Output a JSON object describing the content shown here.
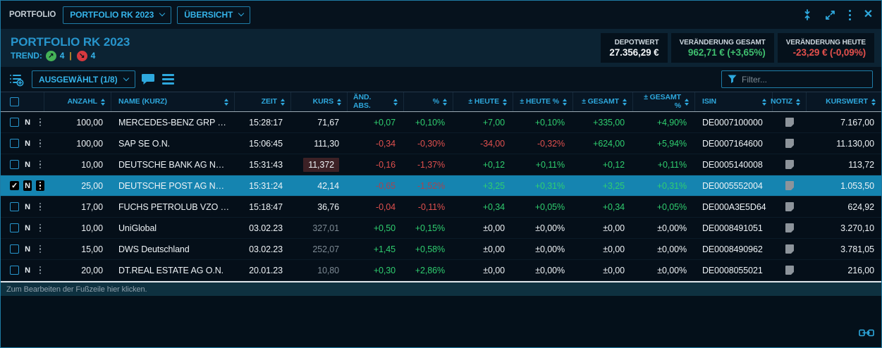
{
  "top_bar": {
    "app_label": "PORTFOLIO",
    "portfolio_select": "PORTFOLIO RK 2023",
    "view_select": "ÜBERSICHT"
  },
  "header": {
    "title": "PORTFOLIO RK 2023",
    "trend": {
      "label": "TREND:",
      "up_count": "4",
      "down_count": "4"
    },
    "stats": [
      {
        "label": "DEPOTWERT",
        "value": "27.356,29 €",
        "tone": "white"
      },
      {
        "label": "VERÄNDERUNG GESAMT",
        "value": "962,71 € (+3,65%)",
        "tone": "green"
      },
      {
        "label": "VERÄNDERUNG HEUTE",
        "value": "-23,29 € (-0,09%)",
        "tone": "red"
      }
    ]
  },
  "toolbar": {
    "selection_dropdown": "AUSGEWÄHLT (1/8)",
    "filter_placeholder": "Filter..."
  },
  "table": {
    "columns": [
      "ANZAHL",
      "NAME (KURZ)",
      "ZEIT",
      "KURS",
      "ÄND. ABS.",
      "%",
      "± HEUTE",
      "± HEUTE %",
      "± GESAMT",
      "± GESAMT %",
      "ISIN",
      "NOTIZ",
      "KURSWERT"
    ],
    "rows": [
      {
        "checked": false,
        "selected": false,
        "badge": "N",
        "anzahl": "100,00",
        "name": "MERCEDES-BENZ GRP …",
        "zeit": "15:28:17",
        "kurs": "71,67",
        "kurs_mode": "live",
        "aend": {
          "t": "+0,07",
          "c": "green"
        },
        "pct": {
          "t": "+0,10%",
          "c": "green"
        },
        "heute": {
          "t": "+7,00",
          "c": "green"
        },
        "heute_pct": {
          "t": "+0,10%",
          "c": "green"
        },
        "gesamt": {
          "t": "+335,00",
          "c": "green"
        },
        "gesamt_pct": {
          "t": "+4,90%",
          "c": "green"
        },
        "isin": "DE0007100000",
        "kurswert": "7.167,00"
      },
      {
        "checked": false,
        "selected": false,
        "badge": "N",
        "anzahl": "100,00",
        "name": "SAP SE O.N.",
        "zeit": "15:06:45",
        "kurs": "111,30",
        "kurs_mode": "live",
        "aend": {
          "t": "-0,34",
          "c": "red"
        },
        "pct": {
          "t": "-0,30%",
          "c": "red"
        },
        "heute": {
          "t": "-34,00",
          "c": "red"
        },
        "heute_pct": {
          "t": "-0,32%",
          "c": "red"
        },
        "gesamt": {
          "t": "+624,00",
          "c": "green"
        },
        "gesamt_pct": {
          "t": "+5,94%",
          "c": "green"
        },
        "isin": "DE0007164600",
        "kurswert": "11.130,00"
      },
      {
        "checked": false,
        "selected": false,
        "badge": "N",
        "anzahl": "10,00",
        "name": "DEUTSCHE BANK AG N…",
        "zeit": "15:31:43",
        "kurs": "11,372",
        "kurs_mode": "flash",
        "aend": {
          "t": "-0,16",
          "c": "red"
        },
        "pct": {
          "t": "-1,37%",
          "c": "red"
        },
        "heute": {
          "t": "+0,12",
          "c": "green"
        },
        "heute_pct": {
          "t": "+0,11%",
          "c": "green"
        },
        "gesamt": {
          "t": "+0,12",
          "c": "green"
        },
        "gesamt_pct": {
          "t": "+0,11%",
          "c": "green"
        },
        "isin": "DE0005140008",
        "kurswert": "113,72"
      },
      {
        "checked": true,
        "selected": true,
        "badge": "N",
        "anzahl": "25,00",
        "name": "DEUTSCHE POST AG N…",
        "zeit": "15:31:24",
        "kurs": "42,14",
        "kurs_mode": "live",
        "aend": {
          "t": "-0,65",
          "c": "reddim"
        },
        "pct": {
          "t": "-1,52%",
          "c": "reddim"
        },
        "heute": {
          "t": "+3,25",
          "c": "green"
        },
        "heute_pct": {
          "t": "+0,31%",
          "c": "green"
        },
        "gesamt": {
          "t": "+3,25",
          "c": "green"
        },
        "gesamt_pct": {
          "t": "+0,31%",
          "c": "green"
        },
        "isin": "DE0005552004",
        "kurswert": "1.053,50"
      },
      {
        "checked": false,
        "selected": false,
        "badge": "N",
        "anzahl": "17,00",
        "name": "FUCHS PETROLUB VZO …",
        "zeit": "15:18:47",
        "kurs": "36,76",
        "kurs_mode": "live",
        "aend": {
          "t": "-0,04",
          "c": "red"
        },
        "pct": {
          "t": "-0,11%",
          "c": "red"
        },
        "heute": {
          "t": "+0,34",
          "c": "green"
        },
        "heute_pct": {
          "t": "+0,05%",
          "c": "green"
        },
        "gesamt": {
          "t": "+0,34",
          "c": "green"
        },
        "gesamt_pct": {
          "t": "+0,05%",
          "c": "green"
        },
        "isin": "DE000A3E5D64",
        "kurswert": "624,92"
      },
      {
        "checked": false,
        "selected": false,
        "badge": "N",
        "anzahl": "10,00",
        "name": "UniGlobal",
        "zeit": "03.02.23",
        "kurs": "327,01",
        "kurs_mode": "stale",
        "aend": {
          "t": "+0,50",
          "c": "green"
        },
        "pct": {
          "t": "+0,15%",
          "c": "green"
        },
        "heute": {
          "t": "±0,00",
          "c": "white"
        },
        "heute_pct": {
          "t": "±0,00%",
          "c": "white"
        },
        "gesamt": {
          "t": "±0,00",
          "c": "white"
        },
        "gesamt_pct": {
          "t": "±0,00%",
          "c": "white"
        },
        "isin": "DE0008491051",
        "kurswert": "3.270,10"
      },
      {
        "checked": false,
        "selected": false,
        "badge": "N",
        "anzahl": "15,00",
        "name": "DWS Deutschland",
        "zeit": "03.02.23",
        "kurs": "252,07",
        "kurs_mode": "stale",
        "aend": {
          "t": "+1,45",
          "c": "green"
        },
        "pct": {
          "t": "+0,58%",
          "c": "green"
        },
        "heute": {
          "t": "±0,00",
          "c": "white"
        },
        "heute_pct": {
          "t": "±0,00%",
          "c": "white"
        },
        "gesamt": {
          "t": "±0,00",
          "c": "white"
        },
        "gesamt_pct": {
          "t": "±0,00%",
          "c": "white"
        },
        "isin": "DE0008490962",
        "kurswert": "3.781,05"
      },
      {
        "checked": false,
        "selected": false,
        "badge": "N",
        "anzahl": "20,00",
        "name": "DT.REAL ESTATE AG O.N.",
        "zeit": "20.01.23",
        "kurs": "10,80",
        "kurs_mode": "stale",
        "aend": {
          "t": "+0,30",
          "c": "green"
        },
        "pct": {
          "t": "+2,86%",
          "c": "green"
        },
        "heute": {
          "t": "±0,00",
          "c": "white"
        },
        "heute_pct": {
          "t": "±0,00%",
          "c": "white"
        },
        "gesamt": {
          "t": "±0,00",
          "c": "white"
        },
        "gesamt_pct": {
          "t": "±0,00%",
          "c": "white"
        },
        "isin": "DE0008055021",
        "kurswert": "216,00"
      }
    ]
  },
  "footer": {
    "edit_hint": "Zum Bearbeiten der Fußzeile hier klicken."
  },
  "icons": [
    "collapse-icon",
    "expand-icon",
    "kebab-menu-icon",
    "close-icon",
    "add-to-list-icon",
    "chat-icon",
    "hamburger-icon",
    "filter-funnel-icon",
    "note-icon",
    "link-icon",
    "trend-up-icon",
    "trend-down-icon",
    "sort-icon",
    "chevron-down-icon",
    "checkbox"
  ],
  "colors": {
    "accent_cyan": "#2ea8dd",
    "positive_green": "#2fce6f",
    "negative_red": "#e0504e",
    "muted_red_selected": "#a8434e",
    "stale_grey": "#7d8a94",
    "selected_row_bg": "#1584b0",
    "kurs_flash_bg": "#3d2126",
    "trend_up_green": "#45b357",
    "trend_down_red": "#d6393f",
    "trend_separator_orange": "#d79a2a",
    "panel_bg": "#0c2333",
    "row_bg": "#050f19"
  }
}
